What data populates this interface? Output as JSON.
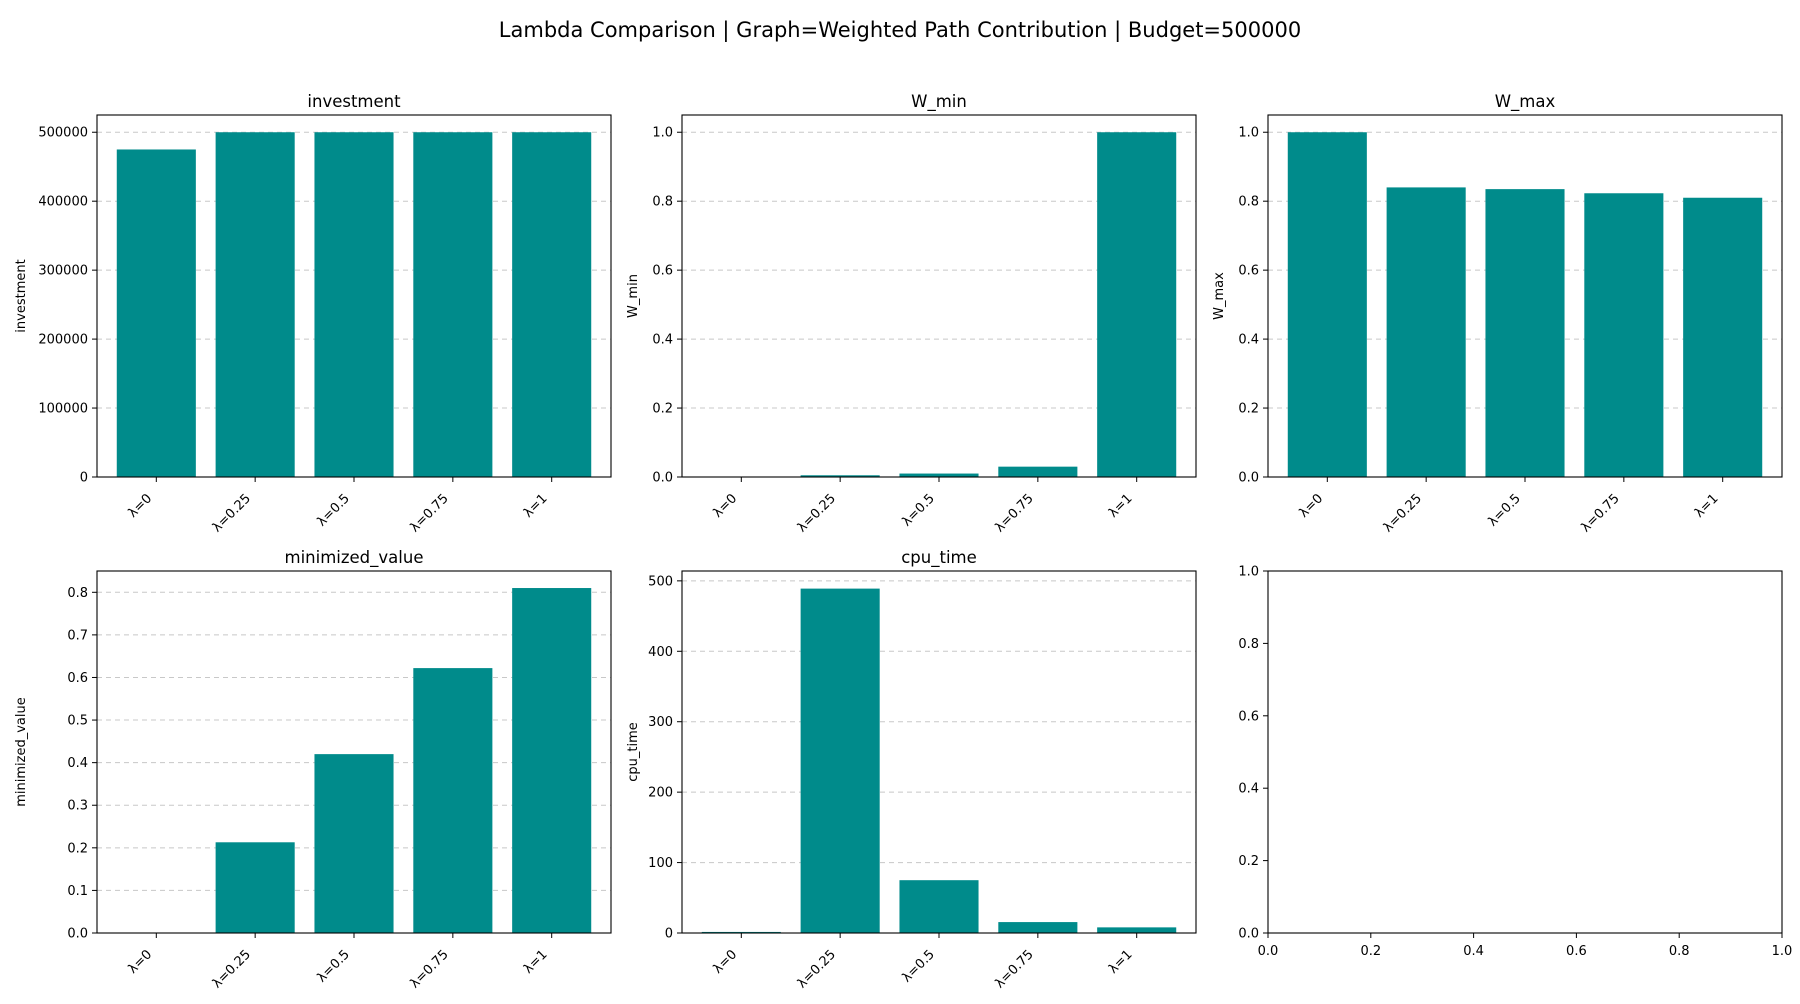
{
  "suptitle": "Lambda Comparison | Graph=Weighted Path Contribution | Budget=500000",
  "bar_color": "#008b8b",
  "chart_data": [
    {
      "type": "bar",
      "title": "investment",
      "ylabel": "investment",
      "categories": [
        "λ=0",
        "λ=0.25",
        "λ=0.5",
        "λ=0.75",
        "λ=1"
      ],
      "values": [
        475000,
        500000,
        500000,
        500000,
        500000
      ],
      "ylim": [
        0,
        525000
      ],
      "yticks": [
        0,
        100000,
        200000,
        300000,
        400000,
        500000
      ],
      "grid": true
    },
    {
      "type": "bar",
      "title": "W_min",
      "ylabel": "W_min",
      "categories": [
        "λ=0",
        "λ=0.25",
        "λ=0.5",
        "λ=0.75",
        "λ=1"
      ],
      "values": [
        0.0,
        0.005,
        0.01,
        0.03,
        1.0
      ],
      "ylim": [
        0,
        1.05
      ],
      "yticks": [
        "0.0",
        "0.2",
        "0.4",
        "0.6",
        "0.8",
        "1.0"
      ],
      "grid": true
    },
    {
      "type": "bar",
      "title": "W_max",
      "ylabel": "W_max",
      "categories": [
        "λ=0",
        "λ=0.25",
        "λ=0.5",
        "λ=0.75",
        "λ=1"
      ],
      "values": [
        1.0,
        0.84,
        0.835,
        0.823,
        0.81
      ],
      "ylim": [
        0,
        1.05
      ],
      "yticks": [
        "0.0",
        "0.2",
        "0.4",
        "0.6",
        "0.8",
        "1.0"
      ],
      "grid": true
    },
    {
      "type": "bar",
      "title": "minimized_value",
      "ylabel": "minimized_value",
      "categories": [
        "λ=0",
        "λ=0.25",
        "λ=0.5",
        "λ=0.75",
        "λ=1"
      ],
      "values": [
        0.0,
        0.213,
        0.42,
        0.622,
        0.81
      ],
      "ylim": [
        0,
        0.85
      ],
      "yticks": [
        "0.0",
        "0.1",
        "0.2",
        "0.3",
        "0.4",
        "0.5",
        "0.6",
        "0.7",
        "0.8"
      ],
      "grid": true
    },
    {
      "type": "bar",
      "title": "cpu_time",
      "ylabel": "cpu_time",
      "categories": [
        "λ=0",
        "λ=0.25",
        "λ=0.5",
        "λ=0.75",
        "λ=1"
      ],
      "values": [
        1.5,
        489,
        75,
        15.5,
        8
      ],
      "ylim": [
        0,
        514
      ],
      "yticks": [
        0,
        100,
        200,
        300,
        400,
        500
      ],
      "grid": true
    },
    {
      "type": "bar",
      "title": "",
      "ylabel": "",
      "categories": [],
      "values": [],
      "xlim": [
        0,
        1
      ],
      "ylim": [
        0,
        1
      ],
      "xticks": [
        "0.0",
        "0.2",
        "0.4",
        "0.6",
        "0.8",
        "1.0"
      ],
      "yticks": [
        "0.0",
        "0.2",
        "0.4",
        "0.6",
        "0.8",
        "1.0"
      ],
      "grid": false
    }
  ]
}
